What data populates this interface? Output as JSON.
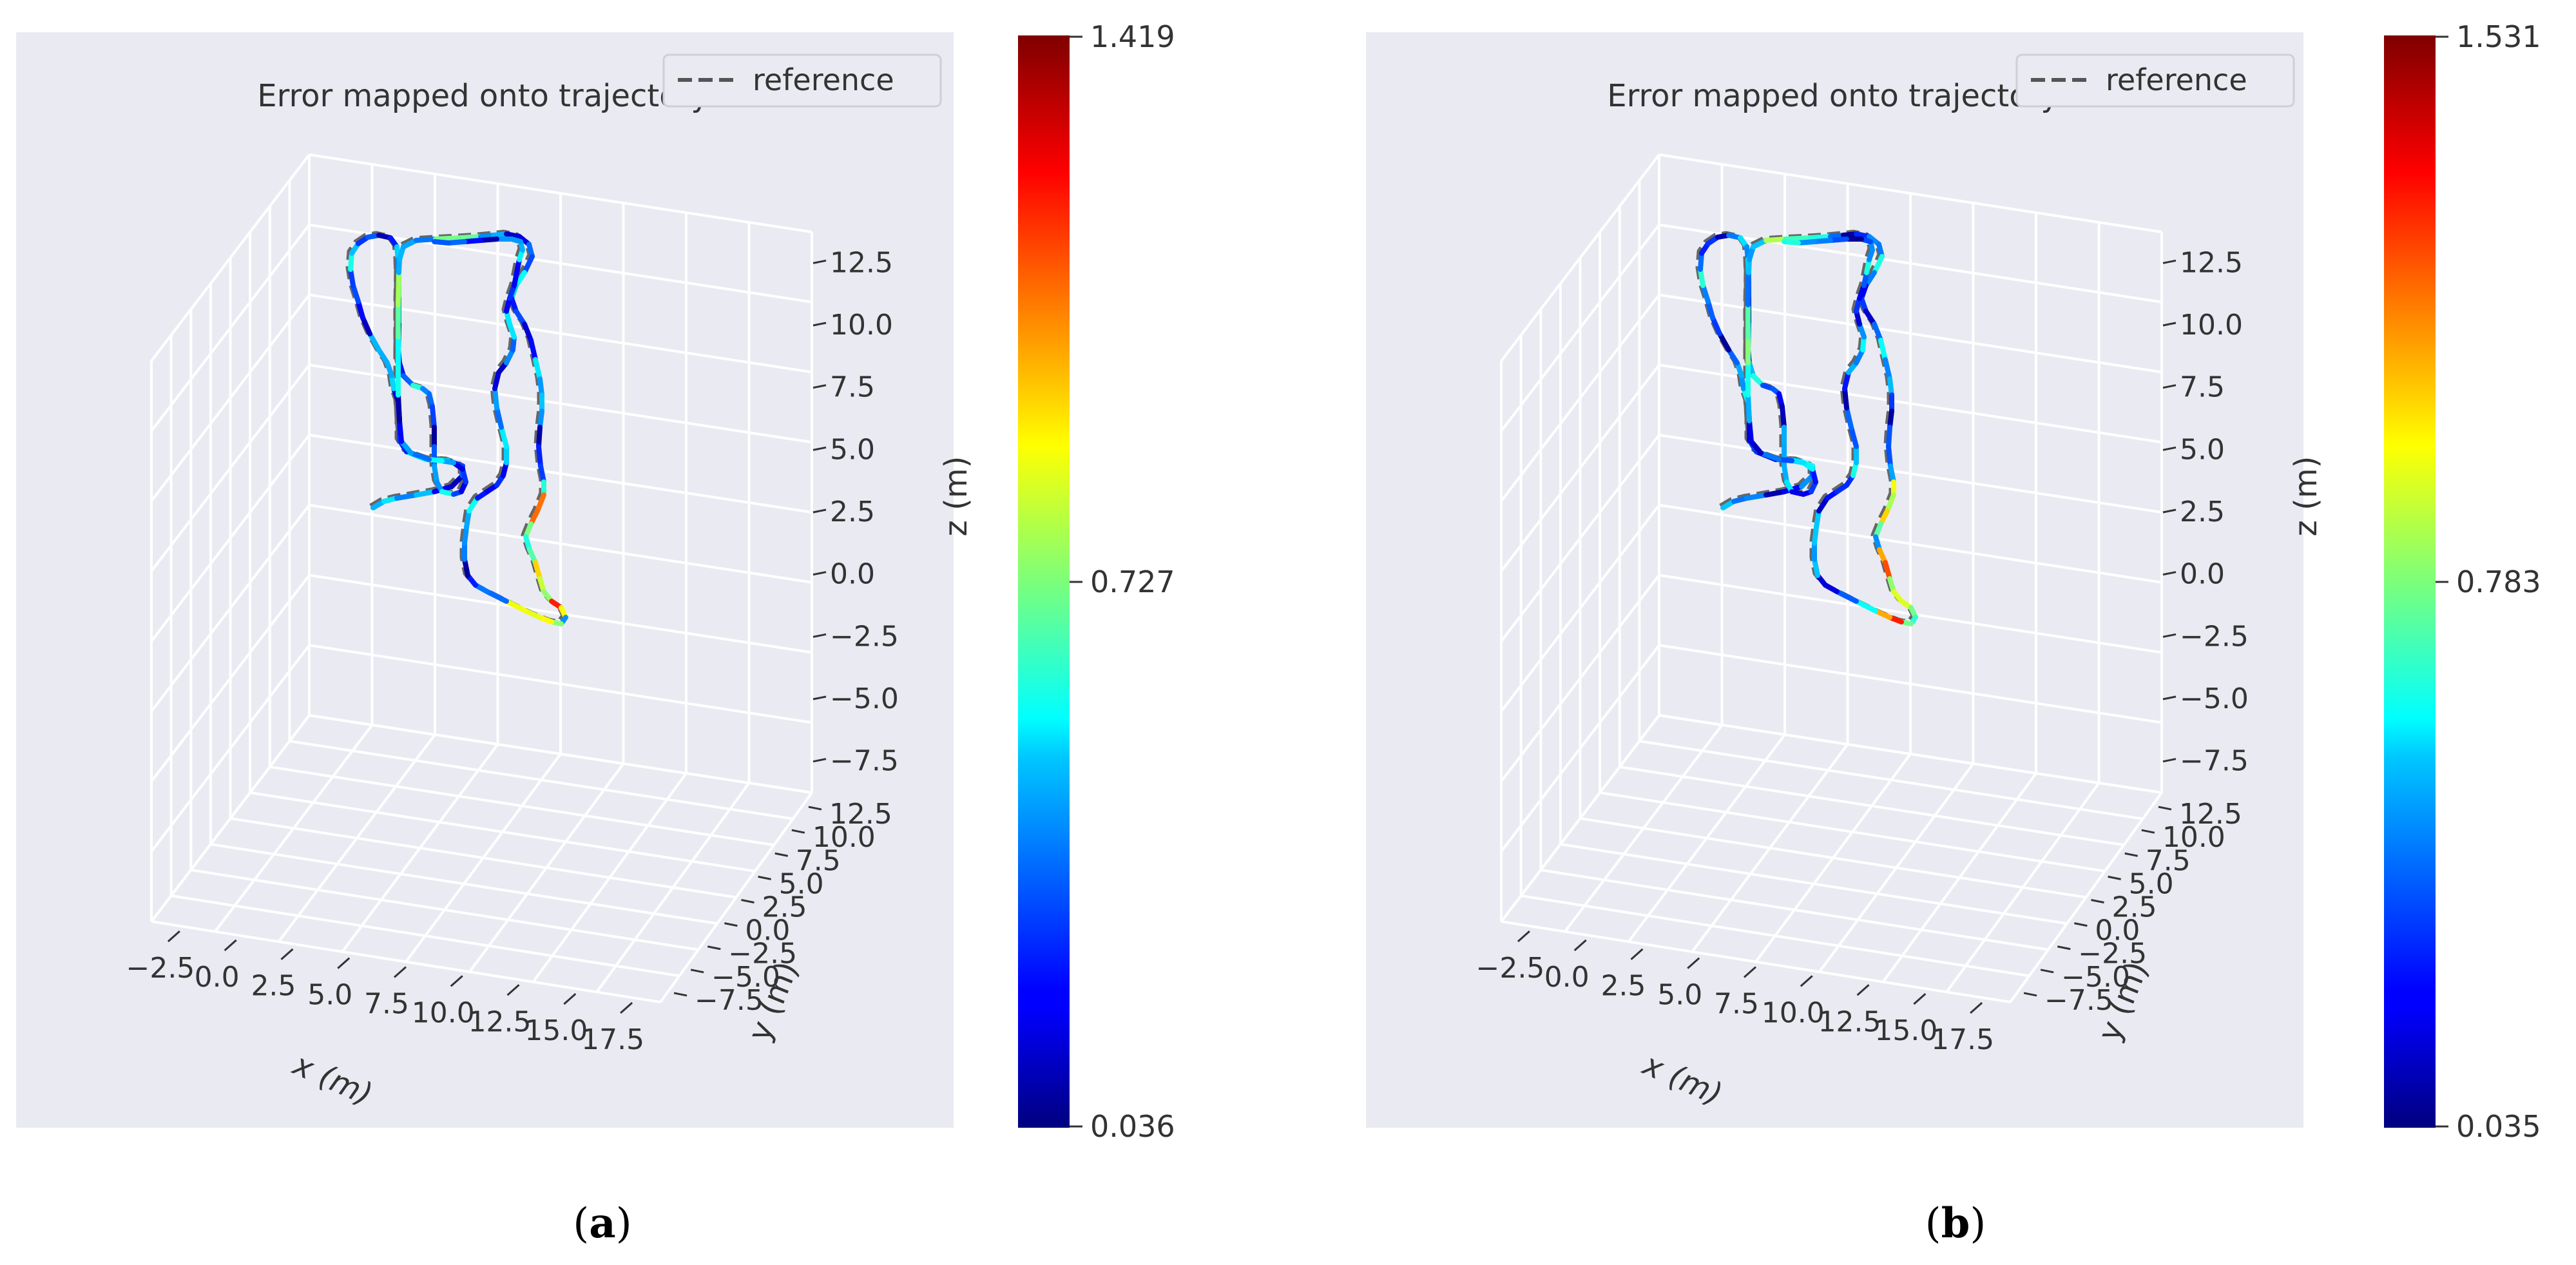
{
  "colors": {
    "pane": "#eaeaf2",
    "grid": "#ffffff",
    "text": "#333333",
    "reference": "#555555"
  },
  "colormap": "jet",
  "chart_data": [
    {
      "panel_label": "a",
      "type": "line3d",
      "title": "Error mapped onto trajectory",
      "legend": {
        "entries": [
          "reference"
        ],
        "placement": "top-right",
        "style": "dashed gray"
      },
      "xlabel": "x (m)",
      "ylabel": "y (m)",
      "zlabel": "z (m)",
      "x_ticks": [
        "−2.5",
        "0.0",
        "2.5",
        "5.0",
        "7.5",
        "10.0",
        "12.5",
        "15.0",
        "17.5"
      ],
      "y_ticks": [
        "−7.5",
        "−5.0",
        "−2.5",
        "0.0",
        "2.5",
        "5.0",
        "7.5",
        "10.0",
        "12.5"
      ],
      "z_ticks": [
        "−7.5",
        "−5.0",
        "−2.5",
        "0.0",
        "2.5",
        "5.0",
        "7.5",
        "10.0",
        "12.5"
      ],
      "colorbar": {
        "min": 0.036,
        "mid": 0.727,
        "max": 1.419,
        "labels": [
          "1.419",
          "0.727",
          "0.036"
        ]
      }
    },
    {
      "panel_label": "b",
      "type": "line3d",
      "title": "Error mapped onto trajectory",
      "legend": {
        "entries": [
          "reference"
        ],
        "placement": "top-right",
        "style": "dashed gray"
      },
      "xlabel": "x (m)",
      "ylabel": "y (m)",
      "zlabel": "z (m)",
      "x_ticks": [
        "−2.5",
        "0.0",
        "2.5",
        "5.0",
        "7.5",
        "10.0",
        "12.5",
        "15.0",
        "17.5"
      ],
      "y_ticks": [
        "−7.5",
        "−5.0",
        "−2.5",
        "0.0",
        "2.5",
        "5.0",
        "7.5",
        "10.0",
        "12.5"
      ],
      "z_ticks": [
        "−7.5",
        "−5.0",
        "−2.5",
        "0.0",
        "2.5",
        "5.0",
        "7.5",
        "10.0",
        "12.5"
      ],
      "colorbar": {
        "min": 0.035,
        "mid": 0.783,
        "max": 1.531,
        "labels": [
          "1.531",
          "0.783",
          "0.035"
        ]
      }
    }
  ]
}
